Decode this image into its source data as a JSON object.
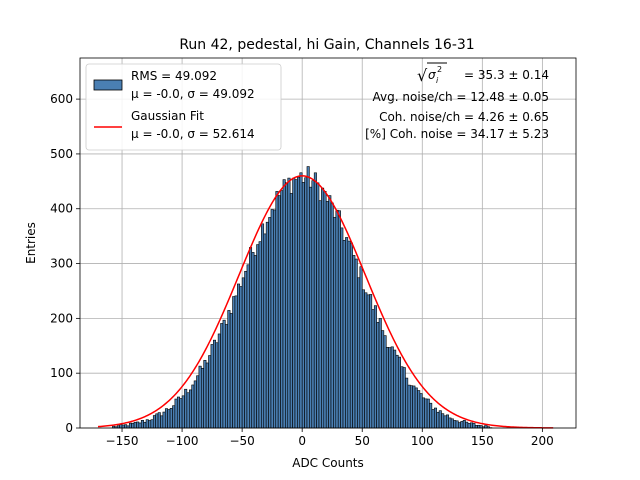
{
  "chart_data": {
    "type": "histogram",
    "title": "Run 42, pedestal, hi Gain, Channels 16-31",
    "xlabel": "ADC Counts",
    "ylabel": "Entries",
    "xlim": [
      -185,
      228
    ],
    "ylim": [
      0,
      675
    ],
    "xticks": [
      -150,
      -100,
      -50,
      0,
      50,
      100,
      150,
      200
    ],
    "yticks": [
      0,
      100,
      200,
      300,
      400,
      500,
      600
    ],
    "grid": true,
    "histogram": {
      "name": "RMS = 49.092",
      "mean": -0.0,
      "sigma": 49.092,
      "peak": 458,
      "range": [
        -158,
        158
      ],
      "bin_width": 2,
      "fill_color": "#4a7fb3",
      "edge_color": "#000000"
    },
    "fit": {
      "name": "Gaussian Fit",
      "type": "gaussian",
      "mean": -0.0,
      "sigma": 52.614,
      "amplitude": 460,
      "x_range": [
        -170,
        209
      ],
      "color": "#ff0000"
    },
    "legend": {
      "placement": "top-left",
      "entries": [
        {
          "line1": "RMS = 49.092",
          "line2": "μ = -0.0, σ = 49.092"
        },
        {
          "line1": "Gaussian Fit",
          "line2": "μ = -0.0, σ = 52.614"
        }
      ]
    },
    "annotations": {
      "placement": "top-right",
      "sqrt_symbol": "√",
      "sigma_label": "σ",
      "sigma_sup": "2",
      "sigma_sub": "i",
      "total_noise": "= 35.3 ± 0.14",
      "lines": [
        "Avg. noise/ch = 12.48 ± 0.05",
        "Coh. noise/ch = 4.26 ± 0.65",
        "[%] Coh. noise = 34.17 ± 5.23"
      ]
    }
  }
}
